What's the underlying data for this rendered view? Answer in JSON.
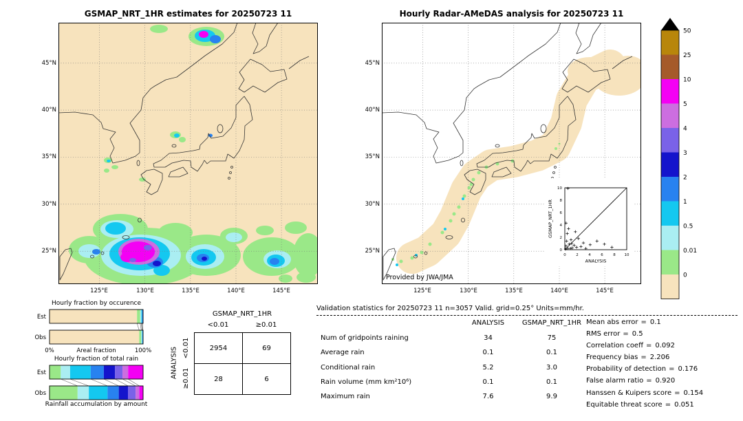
{
  "left_map": {
    "title": "GSMAP_NRT_1HR estimates for 20250723 11",
    "lat_labels": [
      "45°N",
      "40°N",
      "35°N",
      "30°N",
      "25°N"
    ],
    "lon_labels": [
      "125°E",
      "130°E",
      "135°E",
      "140°E",
      "145°E"
    ]
  },
  "right_map": {
    "title": "Hourly Radar-AMeDAS analysis for 20250723 11",
    "credit": "Provided by JWA/JMA",
    "lat_labels": [
      "45°N",
      "40°N",
      "35°N",
      "30°N",
      "25°N"
    ],
    "lon_labels": [
      "125°E",
      "130°E",
      "135°E",
      "140°E",
      "145°E"
    ],
    "inset": {
      "ticks": [
        "0",
        "2",
        "4",
        "6",
        "8",
        "10"
      ]
    }
  },
  "colorbar": {
    "labels": [
      "50",
      "25",
      "10",
      "5",
      "4",
      "3",
      "2",
      "1",
      "0.5",
      "0.01",
      "0"
    ],
    "colors": [
      "#b8860b",
      "#a55a2a",
      "#f400f4",
      "#cc6ee0",
      "#7a62e8",
      "#1414cc",
      "#2882f0",
      "#14c8f0",
      "#aaeef2",
      "#9ae888",
      "#f7e3bd"
    ]
  },
  "chart_data": [
    {
      "id": "precip_maps",
      "type": "heatmap",
      "description": "Hourly precipitation maps over Japan: GSMAP_NRT_1HR estimates (left) vs Radar-AMeDAS analysis (right) for 2025-07-23 11",
      "units": "mm/hr",
      "scale_levels": [
        0,
        0.01,
        0.5,
        1,
        2,
        3,
        4,
        5,
        10,
        25,
        50
      ],
      "scale_colors": [
        "#f7e3bd",
        "#9ae888",
        "#aaeef2",
        "#14c8f0",
        "#2882f0",
        "#1414cc",
        "#7a62e8",
        "#cc6ee0",
        "#f400f4",
        "#a55a2a",
        "#b8860b"
      ],
      "lon_range": [
        "120.5°E",
        "148.5°E"
      ],
      "lat_range": [
        "21.5°N",
        "49.3°N"
      ]
    },
    {
      "id": "occurrence",
      "type": "bar",
      "subtype": "stacked_fraction_horizontal",
      "title": "Hourly fraction by occurence",
      "row_labels": [
        "Est",
        "Obs"
      ],
      "colors": [
        "#f7e3bd",
        "#9ae888",
        "#aaeef2",
        "#14c8f0",
        "#2882f0",
        "#1414cc"
      ],
      "est": [
        0.935,
        0.034,
        0.012,
        0.009,
        0.006,
        0.004
      ],
      "obs": [
        0.958,
        0.022,
        0.008,
        0.006,
        0.004,
        0.002
      ],
      "x_range_labels": [
        "0%",
        "100%"
      ],
      "xlabel": "Areal fraction"
    },
    {
      "id": "totalrain",
      "type": "bar",
      "subtype": "stacked_fraction_horizontal",
      "title": "Hourly fraction of total rain",
      "row_labels": [
        "Est",
        "Obs"
      ],
      "colors": [
        "#9ae888",
        "#aaeef2",
        "#14c8f0",
        "#2882f0",
        "#1414cc",
        "#7a62e8",
        "#cc6ee0",
        "#f400f4"
      ],
      "est": [
        0.12,
        0.1,
        0.22,
        0.14,
        0.12,
        0.08,
        0.06,
        0.16
      ],
      "obs": [
        0.3,
        0.12,
        0.2,
        0.12,
        0.1,
        0.08,
        0.04,
        0.04
      ],
      "xlabel": "Rainfall accumulation by amount"
    },
    {
      "id": "inset_scatter",
      "type": "scatter",
      "xlabel": "ANALYSIS",
      "ylabel": "GSMAP_NRT_1HR",
      "xlim": [
        0,
        10
      ],
      "ylim": [
        0,
        10
      ],
      "diagonal": true,
      "points": [
        [
          0.1,
          0.1
        ],
        [
          0.2,
          0.6
        ],
        [
          0.3,
          1.4
        ],
        [
          0.5,
          0.2
        ],
        [
          0.7,
          0.9
        ],
        [
          1.0,
          1.6
        ],
        [
          1.2,
          0.3
        ],
        [
          1.5,
          0.7
        ],
        [
          1.9,
          0.4
        ],
        [
          2.2,
          1.8
        ],
        [
          2.6,
          0.5
        ],
        [
          3.0,
          1.1
        ],
        [
          3.4,
          0.2
        ],
        [
          4.1,
          0.8
        ],
        [
          5.2,
          1.4
        ],
        [
          0.4,
          2.6
        ],
        [
          0.6,
          3.4
        ],
        [
          0.2,
          4.3
        ],
        [
          1.7,
          2.9
        ],
        [
          7.6,
          0.4
        ],
        [
          0.5,
          9.9
        ],
        [
          6.4,
          0.9
        ],
        [
          0.9,
          0.2
        ],
        [
          1.1,
          1.0
        ]
      ]
    },
    {
      "id": "contingency",
      "type": "table",
      "col_header": "GSMAP_NRT_1HR",
      "row_header": "ANALYSIS",
      "col_labels": [
        "<0.01",
        "≥0.01"
      ],
      "row_labels": [
        "<0.01",
        "≥0.01"
      ],
      "values": [
        [
          "2954",
          "69"
        ],
        [
          "28",
          "6"
        ]
      ]
    },
    {
      "id": "validation",
      "type": "table",
      "title": "Validation statistics for 20250723 11  n=3057 Valid. grid=0.25° Units=mm/hr.",
      "columns": [
        "ANALYSIS",
        "GSMAP_NRT_1HR"
      ],
      "eq": "=",
      "rows": [
        {
          "label": "Num of gridpoints raining",
          "values": [
            "34",
            "75"
          ]
        },
        {
          "label": "Average rain",
          "values": [
            "0.1",
            "0.1"
          ]
        },
        {
          "label": "Conditional rain",
          "values": [
            "5.2",
            "3.0"
          ]
        },
        {
          "label": "Rain volume (mm km²10⁶)",
          "values": [
            "0.1",
            "0.1"
          ]
        },
        {
          "label": "Maximum rain",
          "values": [
            "7.6",
            "9.9"
          ]
        }
      ],
      "scores": [
        {
          "label": "Mean abs error",
          "value": "0.1"
        },
        {
          "label": "RMS error",
          "value": "0.5"
        },
        {
          "label": "Correlation coeff",
          "value": "0.092"
        },
        {
          "label": "Frequency bias",
          "value": "2.206"
        },
        {
          "label": "Probability of detection",
          "value": "0.176"
        },
        {
          "label": "False alarm ratio",
          "value": "0.920"
        },
        {
          "label": "Hanssen & Kuipers score",
          "value": "0.154"
        },
        {
          "label": "Equitable threat score",
          "value": "0.051"
        }
      ]
    }
  ]
}
